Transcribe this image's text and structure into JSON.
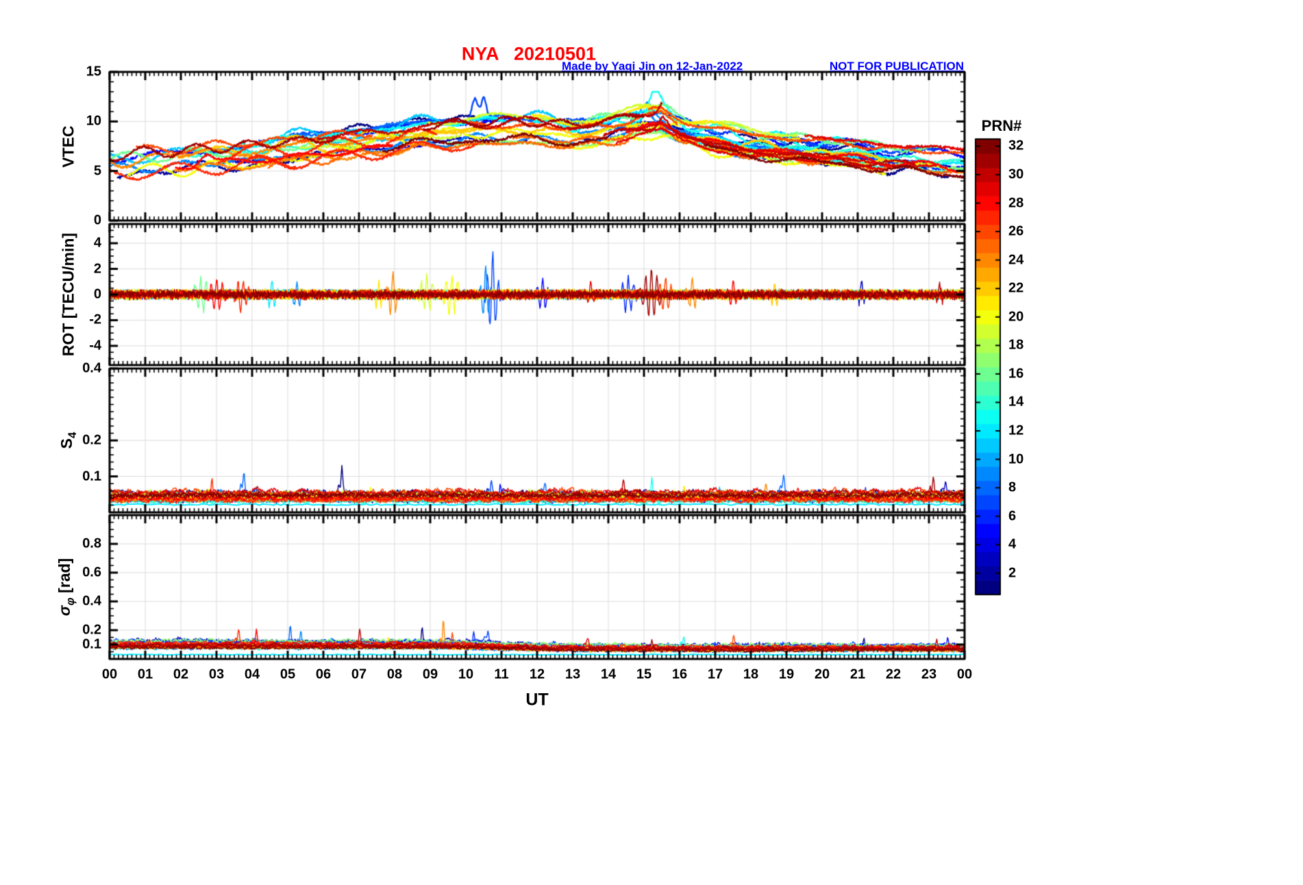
{
  "header": {
    "title": "NYA   20210501",
    "station": "NYA",
    "date": "20210501",
    "credit": "Made by Yaqi Jin on 12-Jan-2022",
    "watermark": "NOT FOR PUBLICATION"
  },
  "xlabel": "UT",
  "x_ticks": [
    "00",
    "01",
    "02",
    "03",
    "04",
    "05",
    "06",
    "07",
    "08",
    "09",
    "10",
    "11",
    "12",
    "13",
    "14",
    "15",
    "16",
    "17",
    "18",
    "19",
    "20",
    "21",
    "22",
    "23",
    "00"
  ],
  "colorbar": {
    "label": "PRN#",
    "min": 1,
    "max": 32,
    "colormap": "jet",
    "ticks": [
      2,
      4,
      6,
      8,
      10,
      12,
      14,
      16,
      18,
      20,
      22,
      24,
      26,
      28,
      30,
      32
    ]
  },
  "colors": {
    "title": "#ff0000",
    "annotation": "#0000ff",
    "grid": "#dcdcdc",
    "axis": "#000000",
    "background": "#ffffff"
  },
  "prns": [
    1,
    2,
    3,
    5,
    6,
    7,
    8,
    9,
    11,
    12,
    13,
    14,
    16,
    17,
    19,
    20,
    21,
    22,
    24,
    25,
    26,
    27,
    28,
    29,
    30,
    31,
    32
  ],
  "chart_data": [
    {
      "type": "line",
      "id": "vtec",
      "ylabel": "VTEC",
      "ylim": [
        0,
        15
      ],
      "yticks": [
        {
          "v": 0,
          "label": "0"
        },
        {
          "v": 5,
          "label": "5"
        },
        {
          "v": 10,
          "label": "10"
        },
        {
          "v": 15,
          "label": "15"
        }
      ],
      "yminor": 1,
      "xlim": [
        0,
        24
      ],
      "grid": true,
      "line_width": 2.4,
      "mean_curve": {
        "x": [
          0,
          2,
          4,
          6,
          8,
          9,
          10,
          11,
          12,
          13,
          14,
          15,
          15.5,
          16,
          17,
          18,
          19,
          20,
          21,
          22,
          23,
          24
        ],
        "y": [
          6.0,
          6.4,
          7.0,
          7.6,
          8.4,
          8.8,
          9.0,
          9.2,
          9.1,
          8.8,
          9.2,
          10.0,
          10.2,
          9.3,
          8.4,
          7.8,
          7.4,
          7.1,
          6.8,
          6.3,
          6.1,
          5.8
        ]
      },
      "spread": 1.4,
      "wander": 0.6,
      "noise": 0.12,
      "spikes": [
        {
          "x": 10.25,
          "amp": 2.2,
          "prn": 7,
          "w": 0.12
        },
        {
          "x": 10.5,
          "amp": 2.0,
          "prn": 7,
          "w": 0.1
        },
        {
          "x": 15.3,
          "amp": 1.9,
          "prn": 13,
          "w": 0.2
        },
        {
          "x": 15.1,
          "amp": 1.5,
          "prn": 9,
          "w": 0.25
        },
        {
          "x": 15.55,
          "amp": 1.2,
          "prn": 30,
          "w": 0.2
        },
        {
          "x": 9.1,
          "amp": 0.9,
          "prn": 21,
          "w": 0.3
        },
        {
          "x": 2.7,
          "amp": 1.0,
          "prn": 28,
          "w": 0.25
        }
      ]
    },
    {
      "type": "line",
      "id": "rot",
      "ylabel": "ROT [TECU/min]",
      "ylim": [
        -5.5,
        5.5
      ],
      "yticks": [
        {
          "v": -4,
          "label": "-4"
        },
        {
          "v": -2,
          "label": "-2"
        },
        {
          "v": 0,
          "label": "0"
        },
        {
          "v": 2,
          "label": "2"
        },
        {
          "v": 4,
          "label": "4"
        }
      ],
      "yminor": 0.5,
      "xlim": [
        0,
        24
      ],
      "grid": true,
      "line_width": 1.4,
      "noise": 0.3,
      "bursts": [
        {
          "x": 2.55,
          "w": 0.2,
          "amp": 1.5,
          "prn": 16
        },
        {
          "x": 3.0,
          "w": 0.25,
          "amp": 1.3,
          "prn": 28
        },
        {
          "x": 3.75,
          "w": 0.2,
          "amp": 1.4,
          "prn": 27
        },
        {
          "x": 4.55,
          "w": 0.15,
          "amp": 1.2,
          "prn": 12
        },
        {
          "x": 5.25,
          "w": 0.15,
          "amp": 1.0,
          "prn": 9
        },
        {
          "x": 7.55,
          "w": 0.12,
          "amp": 1.1,
          "prn": 21
        },
        {
          "x": 7.95,
          "w": 0.15,
          "amp": 1.8,
          "prn": 24
        },
        {
          "x": 8.9,
          "w": 0.2,
          "amp": 1.3,
          "prn": 19
        },
        {
          "x": 9.6,
          "w": 0.25,
          "amp": 1.5,
          "prn": 20
        },
        {
          "x": 10.55,
          "w": 0.12,
          "amp": 2.3,
          "prn": 9
        },
        {
          "x": 10.75,
          "w": 0.15,
          "amp": 3.2,
          "prn": 7
        },
        {
          "x": 12.15,
          "w": 0.15,
          "amp": 1.3,
          "prn": 5
        },
        {
          "x": 13.5,
          "w": 0.12,
          "amp": 1.0,
          "prn": 29
        },
        {
          "x": 14.55,
          "w": 0.2,
          "amp": 1.4,
          "prn": 6
        },
        {
          "x": 15.2,
          "w": 0.25,
          "amp": 2.0,
          "prn": 31
        },
        {
          "x": 15.6,
          "w": 0.2,
          "amp": 1.4,
          "prn": 26
        },
        {
          "x": 16.35,
          "w": 0.15,
          "amp": 1.2,
          "prn": 24
        },
        {
          "x": 17.5,
          "w": 0.15,
          "amp": 1.0,
          "prn": 28
        },
        {
          "x": 18.65,
          "w": 0.12,
          "amp": 0.9,
          "prn": 22
        },
        {
          "x": 21.1,
          "w": 0.12,
          "amp": 0.8,
          "prn": 3
        },
        {
          "x": 23.3,
          "w": 0.1,
          "amp": 0.7,
          "prn": 30
        }
      ]
    },
    {
      "type": "line",
      "id": "s4",
      "ylabel_main": "S",
      "ylabel_sub": "4",
      "ylim": [
        0,
        0.4
      ],
      "yticks": [
        {
          "v": 0.1,
          "label": "0.1"
        },
        {
          "v": 0.2,
          "label": "0.2"
        },
        {
          "v": 0.4,
          "label": "0.4"
        }
      ],
      "yminor": 0.02,
      "xlim": [
        0,
        24
      ],
      "grid": true,
      "line_width": 1.4,
      "baseline": 0.04,
      "noise": 0.011,
      "spikes": [
        {
          "x": 0.45,
          "amp": 0.02,
          "prn": 28
        },
        {
          "x": 0.8,
          "amp": 0.018,
          "prn": 30
        },
        {
          "x": 2.85,
          "amp": 0.068,
          "prn": 27
        },
        {
          "x": 3.1,
          "amp": 0.03,
          "prn": 9
        },
        {
          "x": 3.75,
          "amp": 0.072,
          "prn": 8
        },
        {
          "x": 4.1,
          "amp": 0.04,
          "prn": 11
        },
        {
          "x": 5.9,
          "amp": 0.03,
          "prn": 13
        },
        {
          "x": 6.5,
          "amp": 0.08,
          "prn": 1
        },
        {
          "x": 7.3,
          "amp": 0.03,
          "prn": 20
        },
        {
          "x": 9.6,
          "amp": 0.04,
          "prn": 24
        },
        {
          "x": 10.7,
          "amp": 0.055,
          "prn": 7
        },
        {
          "x": 10.95,
          "amp": 0.045,
          "prn": 5
        },
        {
          "x": 12.2,
          "amp": 0.035,
          "prn": 8
        },
        {
          "x": 14.4,
          "amp": 0.05,
          "prn": 30
        },
        {
          "x": 15.2,
          "amp": 0.07,
          "prn": 13
        },
        {
          "x": 16.1,
          "amp": 0.04,
          "prn": 21
        },
        {
          "x": 17.1,
          "amp": 0.035,
          "prn": 11
        },
        {
          "x": 18.4,
          "amp": 0.055,
          "prn": 24
        },
        {
          "x": 18.9,
          "amp": 0.05,
          "prn": 8
        },
        {
          "x": 19.3,
          "amp": 0.04,
          "prn": 28
        },
        {
          "x": 21.2,
          "amp": 0.035,
          "prn": 6
        },
        {
          "x": 23.1,
          "amp": 0.062,
          "prn": 31
        },
        {
          "x": 23.45,
          "amp": 0.04,
          "prn": 3
        }
      ],
      "flat_lines": [
        {
          "prn": 12,
          "y": 0.022
        }
      ]
    },
    {
      "type": "line",
      "id": "sigma_phi",
      "ylabel_main": "σ",
      "ylabel_sub": "φ",
      "ylabel_unit": " [rad]",
      "ylim": [
        0,
        1
      ],
      "yticks": [
        {
          "v": 0.1,
          "label": "0.1"
        },
        {
          "v": 0.2,
          "label": "0.2"
        },
        {
          "v": 0.4,
          "label": "0.4"
        },
        {
          "v": 0.6,
          "label": "0.6"
        },
        {
          "v": 0.8,
          "label": "0.8"
        }
      ],
      "yminor": 0.05,
      "xlim": [
        0,
        24
      ],
      "grid": true,
      "line_width": 1.4,
      "baseline": 0.08,
      "noise": 0.02,
      "spikes": [
        {
          "x": 1.1,
          "amp": 0.05,
          "prn": 28
        },
        {
          "x": 2.5,
          "amp": 0.06,
          "prn": 16
        },
        {
          "x": 3.6,
          "amp": 0.1,
          "prn": 27
        },
        {
          "x": 4.1,
          "amp": 0.14,
          "prn": 28
        },
        {
          "x": 5.05,
          "amp": 0.17,
          "prn": 8
        },
        {
          "x": 5.35,
          "amp": 0.12,
          "prn": 9
        },
        {
          "x": 6.2,
          "amp": 0.07,
          "prn": 11
        },
        {
          "x": 7.0,
          "amp": 0.12,
          "prn": 30
        },
        {
          "x": 7.8,
          "amp": 0.07,
          "prn": 21
        },
        {
          "x": 8.75,
          "amp": 0.14,
          "prn": 1
        },
        {
          "x": 9.35,
          "amp": 0.22,
          "prn": 24
        },
        {
          "x": 9.6,
          "amp": 0.1,
          "prn": 26
        },
        {
          "x": 10.2,
          "amp": 0.13,
          "prn": 6
        },
        {
          "x": 10.6,
          "amp": 0.08,
          "prn": 7
        },
        {
          "x": 13.4,
          "amp": 0.05,
          "prn": 29
        },
        {
          "x": 15.2,
          "amp": 0.06,
          "prn": 31
        },
        {
          "x": 16.1,
          "amp": 0.1,
          "prn": 13
        },
        {
          "x": 17.5,
          "amp": 0.1,
          "prn": 26
        },
        {
          "x": 18.6,
          "amp": 0.06,
          "prn": 22
        },
        {
          "x": 21.15,
          "amp": 0.08,
          "prn": 1
        },
        {
          "x": 23.2,
          "amp": 0.07,
          "prn": 30
        },
        {
          "x": 23.5,
          "amp": 0.06,
          "prn": 5
        }
      ],
      "flat_lines": [
        {
          "prn": 12,
          "y": 0.03
        }
      ]
    }
  ]
}
